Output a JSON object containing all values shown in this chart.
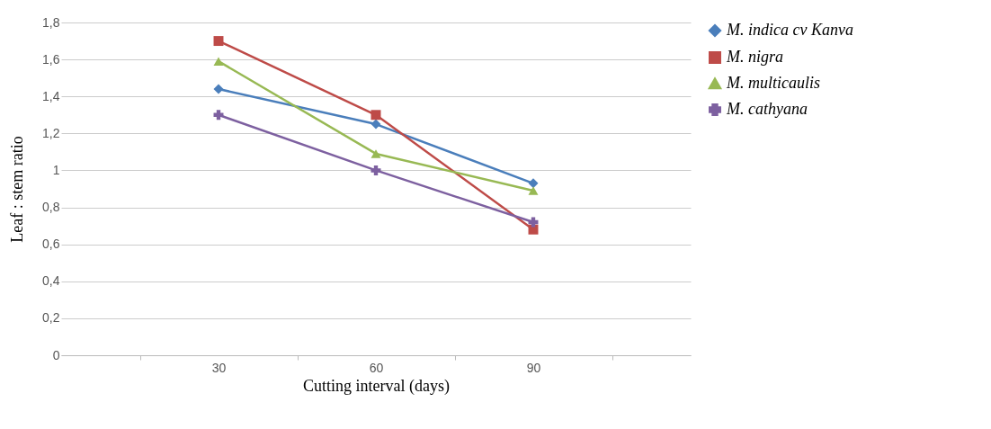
{
  "chart_data": {
    "type": "line",
    "xlabel": "Cutting interval (days)",
    "ylabel": "Leaf : stem ratio",
    "categories": [
      "30",
      "60",
      "90"
    ],
    "ylim": [
      0,
      1.8
    ],
    "yticks": [
      {
        "value": 0,
        "label": "0"
      },
      {
        "value": 0.2,
        "label": "0,2"
      },
      {
        "value": 0.4,
        "label": "0,4"
      },
      {
        "value": 0.6,
        "label": "0,6"
      },
      {
        "value": 0.8,
        "label": "0,8"
      },
      {
        "value": 1,
        "label": "1"
      },
      {
        "value": 1.2,
        "label": "1,2"
      },
      {
        "value": 1.4,
        "label": "1,4"
      },
      {
        "value": 1.6,
        "label": "1,6"
      },
      {
        "value": 1.8,
        "label": "1,8"
      }
    ],
    "grid": "y",
    "legend": "right",
    "line_style": "solid",
    "series": [
      {
        "name": "M. indica cv Kanva",
        "color": "#4a7ebb",
        "marker": "diamond",
        "values": [
          1.44,
          1.25,
          0.93
        ]
      },
      {
        "name": "M. nigra",
        "color": "#be4b48",
        "marker": "square",
        "values": [
          1.7,
          1.3,
          0.68
        ]
      },
      {
        "name": "M. multicaulis",
        "color": "#98b954",
        "marker": "triangle",
        "values": [
          1.59,
          1.09,
          0.89
        ]
      },
      {
        "name": "M. cathyana",
        "color": "#7d60a0",
        "marker": "cross",
        "values": [
          1.3,
          1.0,
          0.72
        ]
      }
    ]
  }
}
